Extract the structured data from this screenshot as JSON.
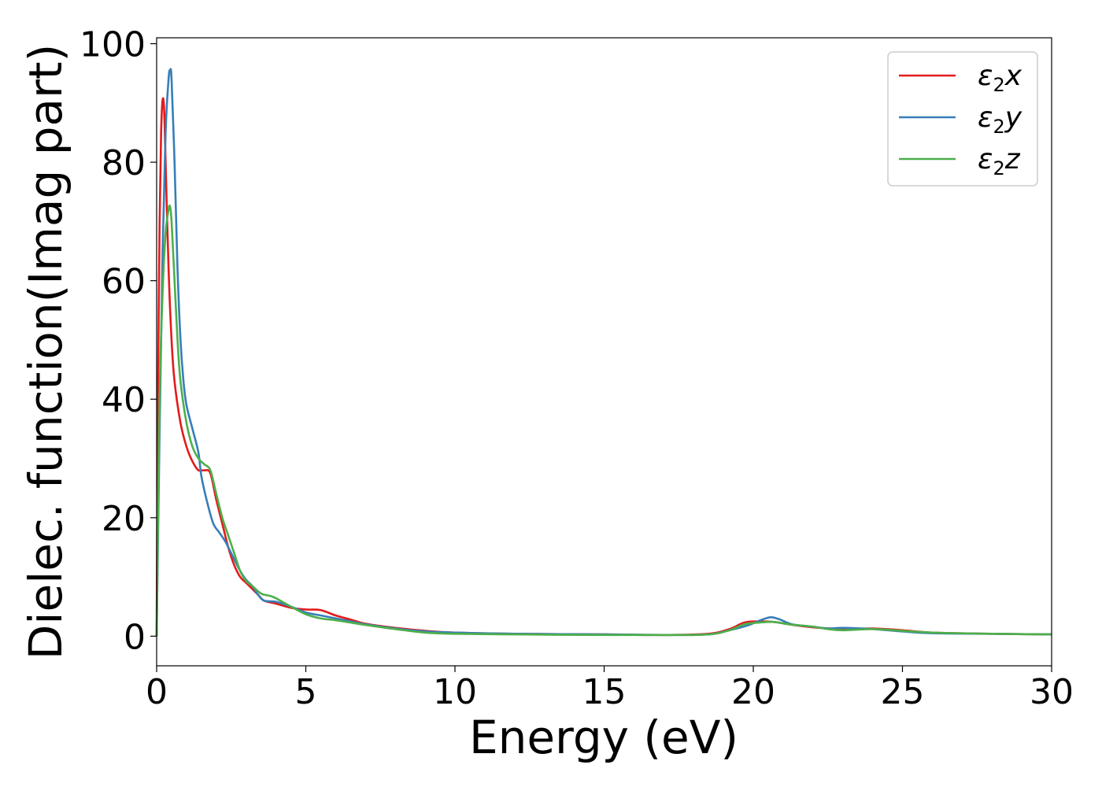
{
  "chart_data": {
    "type": "line",
    "title": "",
    "xlabel": "Energy (eV)",
    "ylabel": "Dielec. function(Imag part)",
    "xlim": [
      0,
      30
    ],
    "ylim": [
      -5,
      101
    ],
    "xticks": [
      "0",
      "5",
      "10",
      "15",
      "20",
      "25",
      "30"
    ],
    "yticks": [
      "0",
      "20",
      "40",
      "60",
      "80",
      "100"
    ],
    "grid": false,
    "legend_position": "top-right",
    "series": [
      {
        "name": "ε2x",
        "label_base": "ε",
        "label_sub": "2",
        "label_tail": "x",
        "color": "#e41a1c",
        "points": [
          [
            0,
            0
          ],
          [
            0.05,
            45
          ],
          [
            0.1,
            70
          ],
          [
            0.15,
            85
          ],
          [
            0.2,
            90.5
          ],
          [
            0.25,
            89
          ],
          [
            0.3,
            80
          ],
          [
            0.4,
            62
          ],
          [
            0.5,
            50
          ],
          [
            0.6,
            43
          ],
          [
            0.8,
            36
          ],
          [
            1.0,
            32
          ],
          [
            1.2,
            29.5
          ],
          [
            1.4,
            28
          ],
          [
            1.6,
            28
          ],
          [
            1.8,
            27.5
          ],
          [
            2.0,
            23
          ],
          [
            2.2,
            19
          ],
          [
            2.4,
            15
          ],
          [
            2.6,
            12
          ],
          [
            2.8,
            10
          ],
          [
            3.0,
            9
          ],
          [
            3.2,
            8
          ],
          [
            3.4,
            7
          ],
          [
            3.6,
            6
          ],
          [
            4.0,
            5.5
          ],
          [
            4.5,
            4.8
          ],
          [
            5.0,
            4.5
          ],
          [
            5.5,
            4.4
          ],
          [
            6.0,
            3.5
          ],
          [
            6.5,
            2.8
          ],
          [
            7.0,
            2.1
          ],
          [
            8,
            1.4
          ],
          [
            9,
            0.9
          ],
          [
            10,
            0.6
          ],
          [
            12,
            0.4
          ],
          [
            15,
            0.3
          ],
          [
            17,
            0.2
          ],
          [
            18.5,
            0.4
          ],
          [
            19.2,
            1.2
          ],
          [
            19.7,
            2.3
          ],
          [
            20.2,
            2.5
          ],
          [
            20.7,
            2.4
          ],
          [
            21.2,
            2.0
          ],
          [
            22,
            1.5
          ],
          [
            23,
            1.2
          ],
          [
            24,
            1.3
          ],
          [
            25,
            1.0
          ],
          [
            26,
            0.6
          ],
          [
            28,
            0.4
          ],
          [
            30,
            0.3
          ]
        ]
      },
      {
        "name": "ε2y",
        "label_base": "ε",
        "label_sub": "2",
        "label_tail": "y",
        "color": "#377eb8",
        "points": [
          [
            0,
            0
          ],
          [
            0.1,
            35
          ],
          [
            0.2,
            65
          ],
          [
            0.3,
            85
          ],
          [
            0.4,
            94
          ],
          [
            0.45,
            95.5
          ],
          [
            0.5,
            94
          ],
          [
            0.6,
            80
          ],
          [
            0.7,
            62
          ],
          [
            0.8,
            50
          ],
          [
            0.9,
            43
          ],
          [
            1.0,
            39
          ],
          [
            1.2,
            35
          ],
          [
            1.4,
            31
          ],
          [
            1.5,
            27
          ],
          [
            1.7,
            22.5
          ],
          [
            1.9,
            19
          ],
          [
            2.1,
            17.5
          ],
          [
            2.3,
            16
          ],
          [
            2.5,
            14
          ],
          [
            2.8,
            11
          ],
          [
            3.0,
            9.5
          ],
          [
            3.2,
            8.5
          ],
          [
            3.4,
            7
          ],
          [
            3.6,
            6
          ],
          [
            4.0,
            5.8
          ],
          [
            4.5,
            5
          ],
          [
            5.0,
            4
          ],
          [
            5.5,
            3.5
          ],
          [
            6,
            3
          ],
          [
            6.5,
            2.5
          ],
          [
            7,
            2
          ],
          [
            8,
            1.3
          ],
          [
            9,
            0.8
          ],
          [
            10,
            0.6
          ],
          [
            12,
            0.4
          ],
          [
            15,
            0.3
          ],
          [
            17,
            0.2
          ],
          [
            18.5,
            0.3
          ],
          [
            19.2,
            1.0
          ],
          [
            19.8,
            1.8
          ],
          [
            20.3,
            2.8
          ],
          [
            20.6,
            3.2
          ],
          [
            20.9,
            2.8
          ],
          [
            21.3,
            2.0
          ],
          [
            22,
            1.6
          ],
          [
            22.5,
            1.3
          ],
          [
            23,
            1.4
          ],
          [
            24,
            1.2
          ],
          [
            25,
            0.8
          ],
          [
            26,
            0.5
          ],
          [
            28,
            0.4
          ],
          [
            30,
            0.3
          ]
        ]
      },
      {
        "name": "ε2z",
        "label_base": "ε",
        "label_sub": "2",
        "label_tail": "z",
        "color": "#4daf4a",
        "points": [
          [
            0,
            0
          ],
          [
            0.1,
            40
          ],
          [
            0.2,
            58
          ],
          [
            0.3,
            68
          ],
          [
            0.4,
            72
          ],
          [
            0.45,
            72.5
          ],
          [
            0.5,
            70
          ],
          [
            0.6,
            60
          ],
          [
            0.7,
            50
          ],
          [
            0.8,
            43
          ],
          [
            1.0,
            36
          ],
          [
            1.2,
            32
          ],
          [
            1.4,
            30
          ],
          [
            1.6,
            29
          ],
          [
            1.8,
            28
          ],
          [
            2.0,
            24
          ],
          [
            2.2,
            20
          ],
          [
            2.4,
            17
          ],
          [
            2.6,
            14
          ],
          [
            2.8,
            11
          ],
          [
            3.0,
            9.3
          ],
          [
            3.2,
            8.5
          ],
          [
            3.5,
            7.2
          ],
          [
            3.8,
            6.8
          ],
          [
            4.0,
            6.4
          ],
          [
            4.5,
            5
          ],
          [
            5.0,
            3.7
          ],
          [
            5.5,
            3.0
          ],
          [
            6,
            2.7
          ],
          [
            6.5,
            2.3
          ],
          [
            7,
            1.9
          ],
          [
            8,
            1.2
          ],
          [
            9,
            0.6
          ],
          [
            10,
            0.4
          ],
          [
            12,
            0.3
          ],
          [
            15,
            0.2
          ],
          [
            17,
            0.2
          ],
          [
            18.5,
            0.3
          ],
          [
            19.2,
            1.0
          ],
          [
            19.7,
            2.0
          ],
          [
            20.2,
            2.3
          ],
          [
            20.7,
            2.4
          ],
          [
            21.2,
            2.0
          ],
          [
            22,
            1.6
          ],
          [
            22.5,
            1.2
          ],
          [
            23,
            1.0
          ],
          [
            24,
            1.2
          ],
          [
            25,
            0.9
          ],
          [
            26,
            0.6
          ],
          [
            28,
            0.4
          ],
          [
            30,
            0.3
          ]
        ]
      }
    ]
  }
}
